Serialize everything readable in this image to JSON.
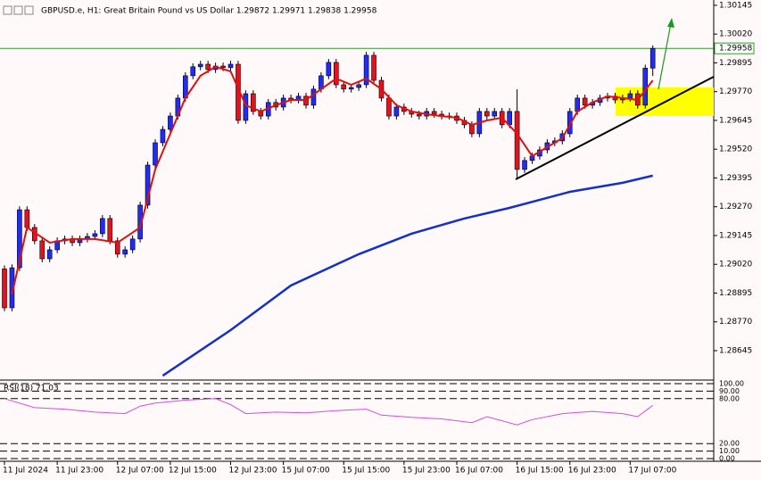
{
  "chart_data": {
    "type": "candlestick",
    "title": "GBPUSD.e, H1:  Great Britain Pound vs US Dollar  1.29872 1.29971 1.29838 1.29958",
    "up_color": "#1f2bff",
    "down_color": "#e8101e",
    "open": [
      1.29,
      1.28831,
      1.29005,
      1.29257,
      1.2918,
      1.29122,
      1.29044,
      1.29083,
      1.29122,
      1.2913,
      1.29114,
      1.2913,
      1.29141,
      1.29153,
      1.29219,
      1.29122,
      1.29064,
      1.29083,
      1.2913,
      1.29277,
      1.29451,
      1.29548,
      1.29606,
      1.29664,
      1.29742,
      1.29839,
      1.29878,
      1.29889,
      1.29866,
      1.29881,
      1.29874,
      1.29889,
      1.29645,
      1.29761,
      1.29684,
      1.29664,
      1.29723,
      1.29703,
      1.29742,
      1.29734,
      1.2975,
      1.29711,
      1.29781,
      1.29839,
      1.29897,
      1.298,
      1.29781,
      1.29788,
      1.298,
      1.29928,
      1.29819,
      1.29742,
      1.29664,
      1.29703,
      1.29684,
      1.29672,
      1.29664,
      1.29684,
      1.29672,
      1.29664,
      1.29664,
      1.29645,
      1.29626,
      1.29587,
      1.29684,
      1.29664,
      1.29684,
      1.29626,
      1.29684,
      1.29432,
      1.29471,
      1.2949,
      1.29517,
      1.29548,
      1.29556,
      1.29587,
      1.29684,
      1.29742,
      1.29711,
      1.29723,
      1.29742,
      1.2975,
      1.29734,
      1.29742,
      1.29761,
      1.29711,
      1.29872
    ],
    "high": [
      1.29015,
      1.2902,
      1.29272,
      1.29272,
      1.29195,
      1.29137,
      1.29098,
      1.29137,
      1.29145,
      1.29145,
      1.29145,
      1.29156,
      1.29168,
      1.29234,
      1.29234,
      1.29137,
      1.29098,
      1.29145,
      1.29292,
      1.29466,
      1.29563,
      1.29621,
      1.29679,
      1.29757,
      1.29854,
      1.29893,
      1.29904,
      1.29904,
      1.29896,
      1.29896,
      1.29904,
      1.29904,
      1.29776,
      1.29776,
      1.29699,
      1.29738,
      1.29738,
      1.29757,
      1.29757,
      1.29765,
      1.29765,
      1.29796,
      1.29854,
      1.29912,
      1.29912,
      1.29815,
      1.29803,
      1.29815,
      1.29943,
      1.29943,
      1.29834,
      1.29757,
      1.29718,
      1.29718,
      1.29699,
      1.29687,
      1.29699,
      1.29699,
      1.29687,
      1.29679,
      1.29679,
      1.2966,
      1.29641,
      1.29699,
      1.29699,
      1.29699,
      1.29699,
      1.29699,
      1.2978,
      1.29486,
      1.29505,
      1.29532,
      1.29563,
      1.29571,
      1.29602,
      1.29699,
      1.29757,
      1.29757,
      1.29738,
      1.29757,
      1.29765,
      1.29765,
      1.29757,
      1.29776,
      1.29776,
      1.29887,
      1.29971
    ],
    "low": [
      1.28816,
      1.28816,
      1.2899,
      1.29165,
      1.29107,
      1.29029,
      1.29029,
      1.29068,
      1.29107,
      1.29099,
      1.29099,
      1.29115,
      1.29126,
      1.29138,
      1.29107,
      1.29049,
      1.29049,
      1.29068,
      1.29115,
      1.29262,
      1.29436,
      1.29533,
      1.29591,
      1.29649,
      1.29727,
      1.29824,
      1.29863,
      1.29851,
      1.29851,
      1.29859,
      1.29859,
      1.2963,
      1.2963,
      1.29669,
      1.29649,
      1.29649,
      1.29688,
      1.29688,
      1.29719,
      1.29719,
      1.29696,
      1.29696,
      1.29766,
      1.29824,
      1.29785,
      1.29766,
      1.29766,
      1.29773,
      1.29785,
      1.29804,
      1.29727,
      1.29649,
      1.29649,
      1.29669,
      1.29657,
      1.29649,
      1.29649,
      1.29657,
      1.29649,
      1.29649,
      1.2963,
      1.29611,
      1.29572,
      1.29572,
      1.29649,
      1.29649,
      1.29611,
      1.29611,
      1.29395,
      1.29417,
      1.29456,
      1.29475,
      1.29502,
      1.29533,
      1.29541,
      1.29572,
      1.29669,
      1.29696,
      1.29696,
      1.29708,
      1.29727,
      1.29719,
      1.29719,
      1.29727,
      1.29696,
      1.29696,
      1.29838
    ],
    "close": [
      1.28831,
      1.29005,
      1.29257,
      1.2918,
      1.29122,
      1.29044,
      1.29083,
      1.29122,
      1.2913,
      1.29114,
      1.2913,
      1.29141,
      1.29153,
      1.29219,
      1.29122,
      1.29064,
      1.29083,
      1.2913,
      1.29277,
      1.29451,
      1.29548,
      1.29606,
      1.29664,
      1.29742,
      1.29839,
      1.29878,
      1.29889,
      1.29866,
      1.29881,
      1.29874,
      1.29889,
      1.29645,
      1.29761,
      1.29684,
      1.29664,
      1.29723,
      1.29703,
      1.29742,
      1.29734,
      1.2975,
      1.29711,
      1.29781,
      1.29839,
      1.29897,
      1.298,
      1.29781,
      1.29788,
      1.298,
      1.29928,
      1.29819,
      1.29742,
      1.29664,
      1.29703,
      1.29684,
      1.29672,
      1.29664,
      1.29684,
      1.29672,
      1.29664,
      1.29664,
      1.29645,
      1.29626,
      1.29587,
      1.29684,
      1.29664,
      1.29684,
      1.29626,
      1.29684,
      1.29432,
      1.29471,
      1.2949,
      1.29517,
      1.29548,
      1.29556,
      1.29587,
      1.29684,
      1.29742,
      1.29711,
      1.29723,
      1.29742,
      1.2975,
      1.29734,
      1.29742,
      1.29761,
      1.29711,
      1.29872,
      1.29958
    ],
    "lines": [
      {
        "color": "#e01010",
        "x": [
          1,
          3,
          6,
          9,
          12,
          15,
          18,
          20,
          22,
          24,
          26,
          28,
          30,
          32,
          34,
          36,
          38,
          40,
          42,
          44,
          46,
          48,
          50,
          52,
          54,
          56,
          58,
          60,
          62,
          64,
          66,
          68,
          70,
          72,
          74,
          76,
          78,
          80,
          82,
          84,
          86
        ],
        "values": [
          1.28889,
          1.2918,
          1.29114,
          1.2913,
          1.2913,
          1.29114,
          1.2918,
          1.29432,
          1.29587,
          1.29742,
          1.29839,
          1.29878,
          1.29858,
          1.29711,
          1.29684,
          1.29711,
          1.29734,
          1.29734,
          1.29781,
          1.29827,
          1.298,
          1.29827,
          1.29781,
          1.29711,
          1.29684,
          1.29672,
          1.29664,
          1.29657,
          1.29626,
          1.29645,
          1.29657,
          1.29587,
          1.2949,
          1.29529,
          1.29568,
          1.29684,
          1.29723,
          1.2975,
          1.29742,
          1.29734,
          1.29819
        ]
      },
      {
        "color": "#1430c8",
        "x": [
          21,
          30,
          38,
          47,
          54,
          61,
          67,
          75,
          82,
          86
        ],
        "values": [
          1.28536,
          1.28734,
          1.28928,
          1.29064,
          1.29153,
          1.29219,
          1.29265,
          1.29335,
          1.29374,
          1.29405
        ]
      }
    ],
    "last": 1.29958,
    "last_color": "#2e9a2e",
    "ylim": [
      1.28521,
      1.30168
    ],
    "yticks": [
      1.30145,
      {
        "value": 1.3002,
        "label": "1.30020"
      },
      1.29895,
      {
        "value": 1.2977,
        "label": "1.29770"
      },
      1.29645,
      {
        "value": 1.2952,
        "label": "1.29520"
      },
      1.29395,
      {
        "value": 1.2927,
        "label": "1.29270"
      },
      1.29145,
      {
        "value": 1.2902,
        "label": "1.29020"
      },
      1.28895,
      {
        "value": 1.2877,
        "label": "1.28770"
      },
      1.28645
    ],
    "xticks": [
      {
        "value": 0,
        "label": "11 Jul 2024"
      },
      {
        "value": 7,
        "label": "11 Jul 23:00"
      },
      {
        "value": 15,
        "label": "12 Jul 07:00"
      },
      {
        "value": 22,
        "label": "12 Jul 15:00"
      },
      {
        "value": 30,
        "label": "12 Jul 23:00"
      },
      {
        "value": 37,
        "label": "15 Jul 07:00"
      },
      {
        "value": 45,
        "label": "15 Jul 15:00"
      },
      {
        "value": 53,
        "label": "15 Jul 23:00"
      },
      {
        "value": 60,
        "label": "16 Jul 07:00"
      },
      {
        "value": 68,
        "label": "16 Jul 15:00"
      },
      {
        "value": 75,
        "label": "16 Jul 23:00"
      },
      {
        "value": 83,
        "label": "17 Jul 07:00"
      }
    ],
    "rsi": {
      "label": "RSI(18) 71.03",
      "color": "#d24fd8",
      "x": [
        0,
        4,
        8,
        12,
        16,
        18,
        20,
        24,
        28,
        30,
        32,
        36,
        40,
        44,
        48,
        50,
        54,
        58,
        62,
        64,
        68,
        70,
        74,
        78,
        82,
        84,
        86
      ],
      "values": [
        80,
        68,
        66,
        62,
        60,
        70,
        74,
        78,
        80,
        72,
        60,
        62,
        61,
        64,
        66,
        58,
        55,
        53,
        48,
        56,
        45,
        52,
        60,
        63,
        60,
        56,
        71.03
      ],
      "ylim": [
        -2.4,
        102.4
      ],
      "yticks": [
        {
          "value": 100,
          "label": "100.00"
        },
        {
          "value": 90,
          "label": "90.00"
        },
        {
          "value": 80,
          "label": "80.00"
        },
        {
          "value": 20,
          "label": "20.00"
        },
        {
          "value": 10,
          "label": "10.00"
        },
        {
          "value": 0,
          "label": "0.00"
        }
      ]
    }
  }
}
